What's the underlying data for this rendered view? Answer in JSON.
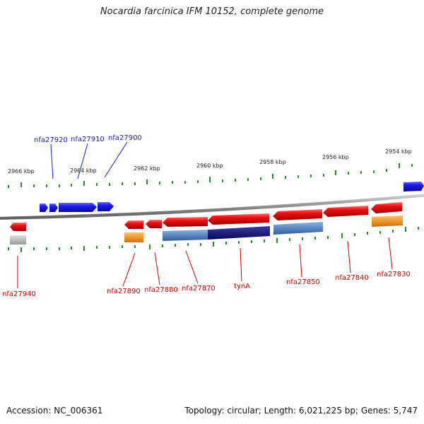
{
  "title": "Nocardia farcinica IFM 10152, complete genome",
  "footer": {
    "accession": "Accession: NC_006361",
    "summary": "Topology: circular; Length: 6,021,225 bp; Genes: 5,747"
  },
  "colors": {
    "forward_gene": "#1a1aee",
    "reverse_gene": "#ee1010",
    "blue_label": "#1a1aa6",
    "red_label": "#cc0000",
    "tick": "#2a8a2a",
    "backbone": "#8c8c8c",
    "orange": "#f09000",
    "grey": "#b8b8b8",
    "steel_blue": "#4a80c0",
    "navy": "#10107a"
  },
  "scale": {
    "labels": [
      "2966 kbp",
      "2964 kbp",
      "2962 kbp",
      "2960 kbp",
      "2958 kbp",
      "2956 kbp",
      "2954 kbp"
    ]
  },
  "forward_genes": [
    {
      "id": "fwd-1",
      "color": "#1a1aee"
    },
    {
      "id": "fwd-2",
      "color": "#1a1aee"
    },
    {
      "id": "fwd-3",
      "color": "#1a1aee"
    },
    {
      "id": "fwd-4",
      "color": "#1a1aee"
    },
    {
      "id": "fwd-5",
      "color": "#1a1aee"
    }
  ],
  "forward_labels": [
    "nfa27920",
    "nfa27910",
    "nfa27900"
  ],
  "reverse_genes": [
    {
      "id": "nfa27940",
      "color": "#ee1010"
    },
    {
      "id": "nfa27890",
      "color": "#ee1010"
    },
    {
      "id": "nfa27880",
      "color": "#ee1010"
    },
    {
      "id": "nfa27870",
      "color": "#ee1010"
    },
    {
      "id": "tynA",
      "color": "#ee1010"
    },
    {
      "id": "nfa27850",
      "color": "#ee1010"
    },
    {
      "id": "nfa27840",
      "color": "#ee1010"
    },
    {
      "id": "nfa27830",
      "color": "#ee1010"
    }
  ],
  "reverse_labels": [
    "nfa27940",
    "nfa27890",
    "nfa27880",
    "nfa27870",
    "tynA",
    "nfa27850",
    "nfa27840",
    "nfa27830"
  ],
  "feature_bars": [
    {
      "id": "nfa27940-feature",
      "color": "#b8b8b8"
    },
    {
      "id": "nfa27890-feature",
      "color": "#f09000"
    },
    {
      "id": "nfa27870-feature",
      "color": "#4a80c0"
    },
    {
      "id": "tynA-feature",
      "color": "#10107a"
    },
    {
      "id": "nfa27850-feature",
      "color": "#4a80c0"
    },
    {
      "id": "nfa27830-feature",
      "color": "#f09000"
    }
  ]
}
